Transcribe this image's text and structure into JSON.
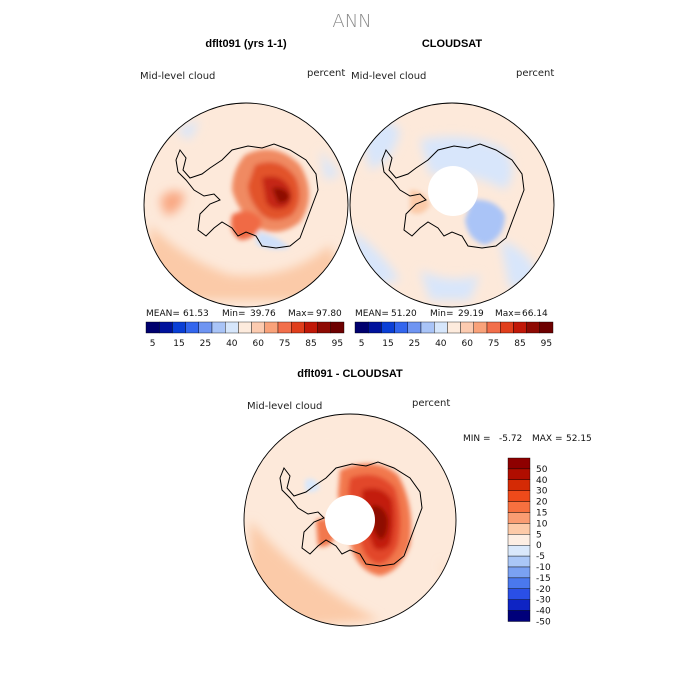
{
  "figure": {
    "title": "ANN"
  },
  "colors": {
    "coast": "#000000",
    "mask": "#ffffff"
  },
  "chart_data": [
    {
      "type": "heatmap",
      "title": "dflt091 (yrs 1-1)",
      "left_label": "Mid-level cloud",
      "right_label": "percent",
      "stats": {
        "mean_label": "MEAN=",
        "mean": "61.53",
        "min_label": "Min=",
        "min": "39.76",
        "max_label": "Max=",
        "max": "97.80"
      },
      "colorbar": {
        "colors": [
          "#00006e",
          "#00129c",
          "#0a3fd6",
          "#3366ee",
          "#6f95f2",
          "#a9c4f7",
          "#d6e6fb",
          "#fdebdd",
          "#fccbb0",
          "#f9a27a",
          "#f26f4b",
          "#e03e1c",
          "#c11808",
          "#8e0a03",
          "#6d0000"
        ],
        "labels": [
          "5",
          "15",
          "25",
          "40",
          "60",
          "75",
          "85",
          "95"
        ]
      }
    },
    {
      "type": "heatmap",
      "title": "CLOUDSAT",
      "left_label": "Mid-level cloud",
      "right_label": "percent",
      "stats": {
        "mean_label": "MEAN=",
        "mean": "51.20",
        "min_label": "Min=",
        "min": "29.19",
        "max_label": "Max=",
        "max": "66.14"
      },
      "colorbar": {
        "colors": [
          "#00006e",
          "#00129c",
          "#0a3fd6",
          "#3366ee",
          "#6f95f2",
          "#a9c4f7",
          "#d6e6fb",
          "#fdebdd",
          "#fccbb0",
          "#f9a27a",
          "#f26f4b",
          "#e03e1c",
          "#c11808",
          "#8e0a03",
          "#6d0000"
        ],
        "labels": [
          "5",
          "15",
          "25",
          "40",
          "60",
          "75",
          "85",
          "95"
        ]
      }
    },
    {
      "type": "heatmap",
      "title": "dflt091 - CLOUDSAT",
      "left_label": "Mid-level cloud",
      "right_label": "percent",
      "stats": {
        "min_label": "MIN =",
        "min": "-5.72",
        "max_label": "MAX =",
        "max": "52.15"
      },
      "colorbar": {
        "colors": [
          "#8e0000",
          "#b00d00",
          "#d42a05",
          "#ee4a1a",
          "#f7703f",
          "#fa9c72",
          "#fdcaa8",
          "#fdeee3",
          "#d9e8fb",
          "#aac7f7",
          "#7aa1f2",
          "#4a78ee",
          "#2a4fe6",
          "#0e24c4",
          "#00007a"
        ],
        "labels": [
          "50",
          "40",
          "30",
          "20",
          "15",
          "10",
          "5",
          "0",
          "-5",
          "-10",
          "-15",
          "-20",
          "-30",
          "-40",
          "-50"
        ]
      }
    }
  ]
}
